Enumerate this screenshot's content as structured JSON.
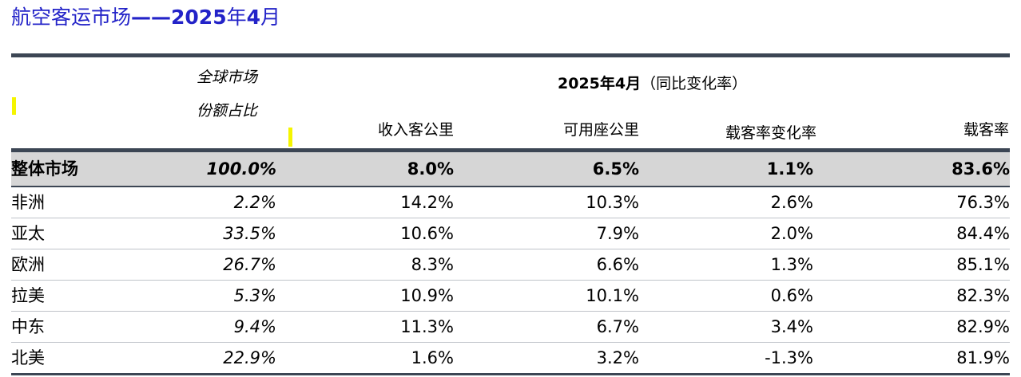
{
  "title": {
    "prefix": "航空客运市场",
    "dash": "——",
    "year": "2025",
    "nian": "年",
    "month": "4",
    "yue": "月"
  },
  "header": {
    "share_line1": "全球市场",
    "share_line2": "份额占比",
    "group_bold": "2025年4月",
    "group_paren": "（同比变化率）",
    "columns": [
      "收入客公里",
      "可用座公里",
      "载客率变化率",
      "载客率"
    ]
  },
  "total": {
    "region": "整体市场",
    "share": "100.0%",
    "rpk": "8.0%",
    "ask": "6.5%",
    "plf_change": "1.1%",
    "plf": "83.6%"
  },
  "rows": [
    {
      "region": "非洲",
      "share": "2.2%",
      "rpk": "14.2%",
      "ask": "10.3%",
      "plf_change": "2.6%",
      "plf": "76.3%"
    },
    {
      "region": "亚太",
      "share": "33.5%",
      "rpk": "10.6%",
      "ask": "7.9%",
      "plf_change": "2.0%",
      "plf": "84.4%"
    },
    {
      "region": "欧洲",
      "share": "26.7%",
      "rpk": "8.3%",
      "ask": "6.6%",
      "plf_change": "1.3%",
      "plf": "85.1%"
    },
    {
      "region": "拉美",
      "share": "5.3%",
      "rpk": "10.9%",
      "ask": "10.1%",
      "plf_change": "0.6%",
      "plf": "82.3%"
    },
    {
      "region": "中东",
      "share": "9.4%",
      "rpk": "11.3%",
      "ask": "6.7%",
      "plf_change": "3.4%",
      "plf": "82.9%"
    },
    {
      "region": "北美",
      "share": "22.9%",
      "rpk": "1.6%",
      "ask": "3.2%",
      "plf_change": "-1.3%",
      "plf": "81.9%"
    }
  ],
  "colors": {
    "title": "#2323c8",
    "rule": "#3c4654",
    "total_bg": "#d6d6d6",
    "marker": "#f5f500"
  }
}
